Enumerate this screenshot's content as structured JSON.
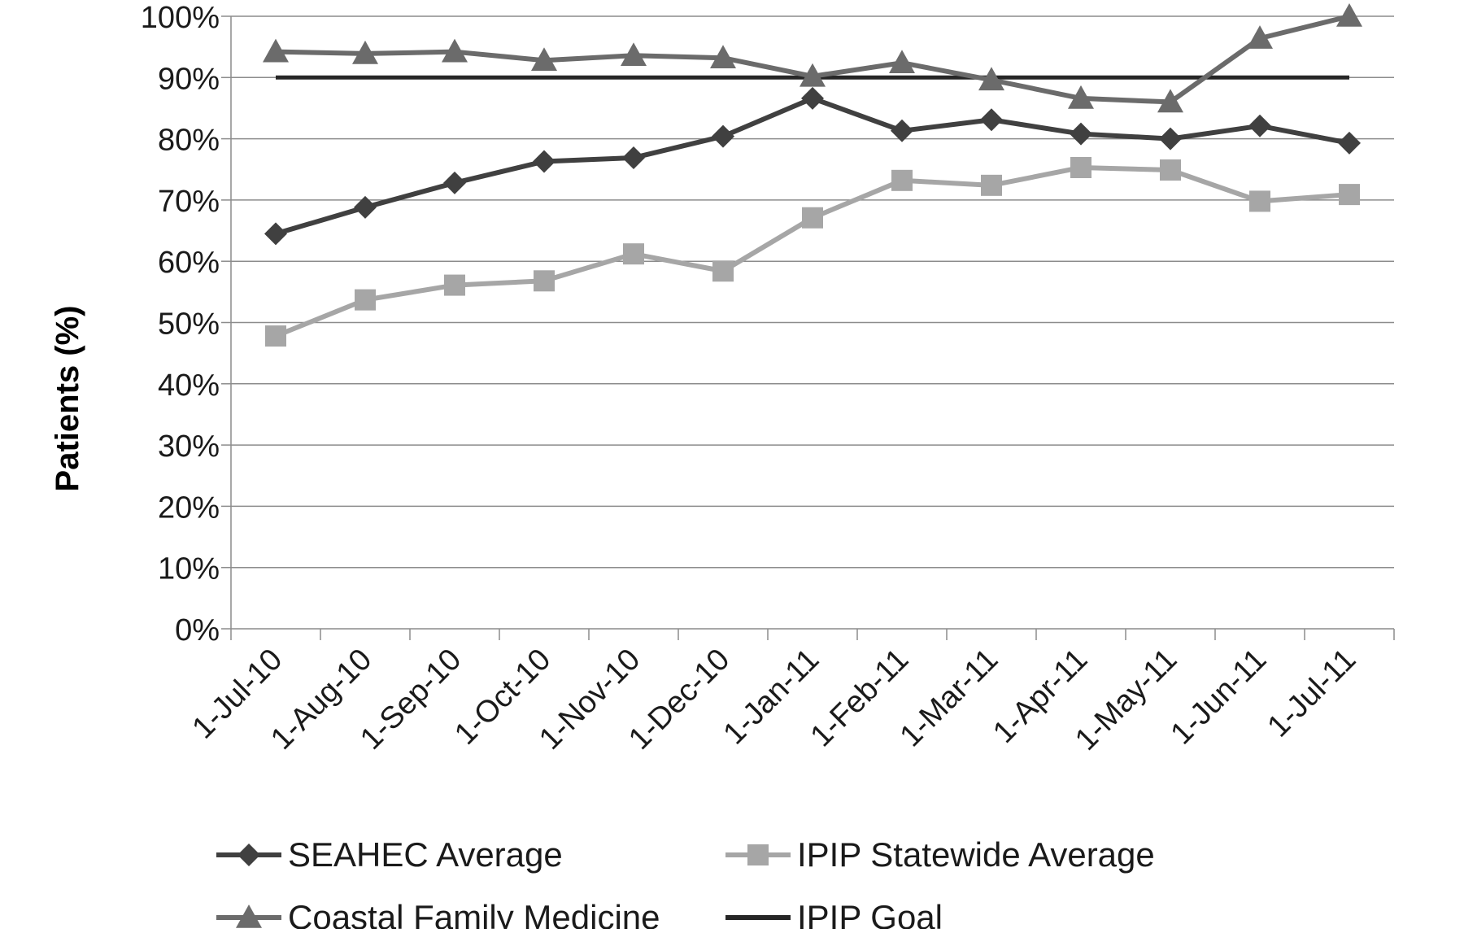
{
  "chart_data": {
    "type": "line",
    "title": "",
    "xlabel": "",
    "ylabel": "Patients (%)",
    "ylim": [
      0,
      100
    ],
    "y_ticks": [
      "0%",
      "10%",
      "20%",
      "30%",
      "40%",
      "50%",
      "60%",
      "70%",
      "80%",
      "90%",
      "100%"
    ],
    "categories": [
      "1-Jul-10",
      "1-Aug-10",
      "1-Sep-10",
      "1-Oct-10",
      "1-Nov-10",
      "1-Dec-10",
      "1-Jan-11",
      "1-Feb-11",
      "1-Mar-11",
      "1-Apr-11",
      "1-May-11",
      "1-Jun-11",
      "1-Jul-11"
    ],
    "grid": true,
    "legend_position": "bottom",
    "series": [
      {
        "name": "SEAHEC Average",
        "marker": "diamond",
        "color": "#404040",
        "values": [
          64.5,
          68.8,
          72.8,
          76.3,
          76.9,
          80.4,
          86.6,
          81.3,
          83.1,
          80.8,
          80.0,
          82.1,
          79.3
        ]
      },
      {
        "name": "IPIP Statewide Average",
        "marker": "square",
        "color": "#a6a6a6",
        "values": [
          47.8,
          53.7,
          56.1,
          56.8,
          61.2,
          58.4,
          67.1,
          73.2,
          72.4,
          75.3,
          74.9,
          69.8,
          70.9
        ]
      },
      {
        "name": "Coastal Family Medicine",
        "marker": "triangle",
        "color": "#6b6b6b",
        "values": [
          94.2,
          93.9,
          94.2,
          92.8,
          93.6,
          93.2,
          90.2,
          92.4,
          89.6,
          86.6,
          86.0,
          96.4,
          100.0
        ]
      },
      {
        "name": "IPIP Goal",
        "marker": "none",
        "color": "#262626",
        "values": [
          90,
          90,
          90,
          90,
          90,
          90,
          90,
          90,
          90,
          90,
          90,
          90,
          90
        ]
      }
    ]
  }
}
